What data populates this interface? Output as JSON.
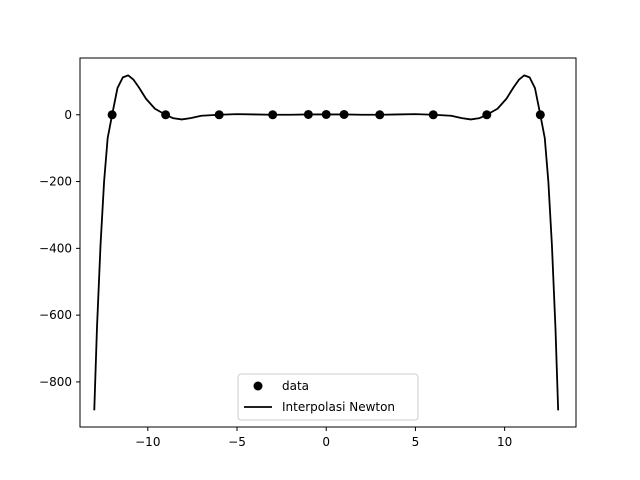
{
  "chart_data": {
    "type": "scatter",
    "title": "",
    "xlabel": "",
    "ylabel": "",
    "xlim": [
      -13.8,
      14.0
    ],
    "ylim": [
      -935,
      170
    ],
    "xticks": [
      -10,
      -5,
      0,
      5,
      10
    ],
    "xtick_labels": [
      "−10",
      "−5",
      "0",
      "5",
      "10"
    ],
    "yticks": [
      -800,
      -600,
      -400,
      -200,
      0
    ],
    "ytick_labels": [
      "−800",
      "−600",
      "−400",
      "−200",
      "0"
    ],
    "grid": false,
    "legend_position": "lower-center",
    "legend": [
      "data",
      "Interpolasi Newton"
    ],
    "series": [
      {
        "name": "data",
        "kind": "scatter",
        "marker": "circle",
        "color": "#000000",
        "points": [
          [
            -12,
            0
          ],
          [
            -9,
            0
          ],
          [
            -6,
            0
          ],
          [
            -3,
            0
          ],
          [
            -1,
            1
          ],
          [
            0,
            1
          ],
          [
            1,
            1
          ],
          [
            3,
            0
          ],
          [
            6,
            0
          ],
          [
            9,
            0
          ],
          [
            12,
            0
          ]
        ]
      },
      {
        "name": "Interpolasi Newton",
        "kind": "line",
        "color": "#000000",
        "points": [
          [
            -13.0,
            -885
          ],
          [
            -12.85,
            -640
          ],
          [
            -12.65,
            -390
          ],
          [
            -12.45,
            -200
          ],
          [
            -12.25,
            -70
          ],
          [
            -12.0,
            0
          ],
          [
            -11.7,
            80
          ],
          [
            -11.4,
            112
          ],
          [
            -11.1,
            118
          ],
          [
            -10.8,
            105
          ],
          [
            -10.5,
            82
          ],
          [
            -10.1,
            48
          ],
          [
            -9.6,
            18
          ],
          [
            -9.0,
            0
          ],
          [
            -8.6,
            -10
          ],
          [
            -8.1,
            -14
          ],
          [
            -7.6,
            -10
          ],
          [
            -7.0,
            -3
          ],
          [
            -6.0,
            0
          ],
          [
            -5.0,
            2
          ],
          [
            -4.0,
            1
          ],
          [
            -3.0,
            0
          ],
          [
            -2.0,
            0
          ],
          [
            -1.0,
            1
          ],
          [
            0.0,
            1
          ],
          [
            1.0,
            1
          ],
          [
            2.0,
            0
          ],
          [
            3.0,
            0
          ],
          [
            4.0,
            1
          ],
          [
            5.0,
            2
          ],
          [
            6.0,
            0
          ],
          [
            7.0,
            -3
          ],
          [
            7.6,
            -10
          ],
          [
            8.1,
            -14
          ],
          [
            8.6,
            -10
          ],
          [
            9.0,
            0
          ],
          [
            9.6,
            18
          ],
          [
            10.1,
            48
          ],
          [
            10.5,
            82
          ],
          [
            10.8,
            105
          ],
          [
            11.1,
            118
          ],
          [
            11.4,
            112
          ],
          [
            11.7,
            80
          ],
          [
            12.0,
            0
          ],
          [
            12.25,
            -70
          ],
          [
            12.45,
            -200
          ],
          [
            12.65,
            -390
          ],
          [
            12.85,
            -640
          ],
          [
            13.0,
            -885
          ]
        ]
      }
    ]
  }
}
